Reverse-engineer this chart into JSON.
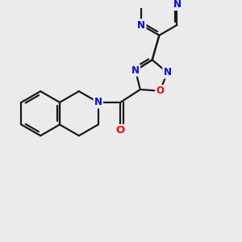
{
  "background_color": "#ebebeb",
  "bond_color": "#1a1a1a",
  "N_color": "#0000ff",
  "O_color": "#ff0000",
  "bond_width": 1.6,
  "font_size": 8.5,
  "figsize": [
    3.0,
    3.0
  ],
  "dpi": 100,
  "xlim": [
    0,
    10
  ],
  "ylim": [
    0,
    10
  ]
}
